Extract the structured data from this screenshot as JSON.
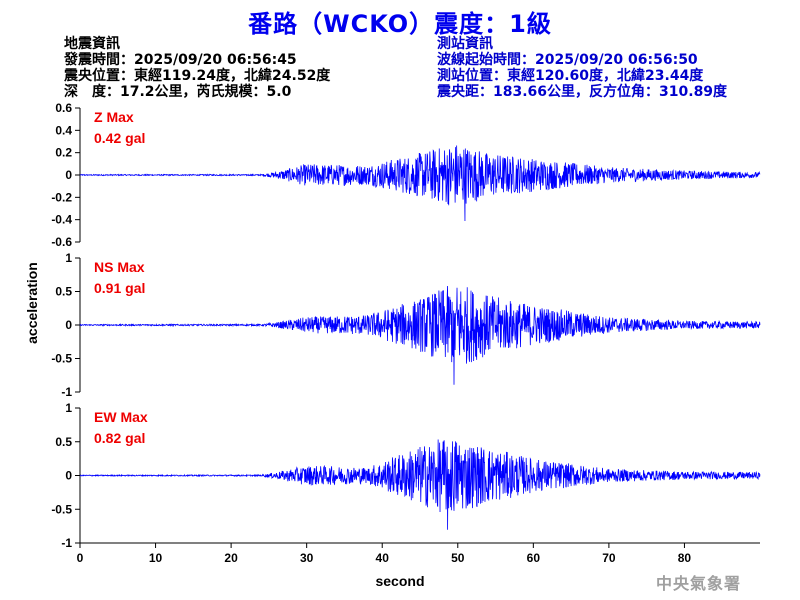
{
  "title": "番路（WCKO）震度：1級",
  "info_left": {
    "heading": "地震資訊",
    "origin_time": "發震時間：2025/09/20 06:56:45",
    "epicenter": "震央位置：東經119.24度，北緯24.52度",
    "depth_magnitude": "深　度：17.2公里，芮氏規模：5.0"
  },
  "info_right": {
    "heading": "測站資訊",
    "wave_start": "波線起始時間：2025/09/20 06:56:50",
    "station_location": "測站位置：東經120.60度，北緯23.44度",
    "distance_azimuth": "震央距：183.66公里，反方位角：310.89度"
  },
  "credit": "中央氣象署",
  "colors": {
    "title": "#0000ee",
    "trace": "#0000ff",
    "max_label": "#ee0000",
    "info_right": "#0000cc",
    "credit": "#a0a0a0"
  },
  "chart_data": {
    "type": "line",
    "xlabel": "second",
    "ylabel": "acceleration",
    "xlim": [
      0,
      90
    ],
    "xticks": [
      0,
      10,
      20,
      30,
      40,
      50,
      60,
      70,
      80
    ],
    "grid": false,
    "panels": [
      {
        "component": "Z",
        "max_label": "Z Max",
        "max_value": "0.42 gal",
        "peak": 0.42,
        "ylim": [
          -0.6,
          0.6
        ],
        "yticks": [
          0.6,
          0.4,
          0.2,
          0,
          -0.2,
          -0.4,
          -0.6
        ],
        "envelope": [
          [
            0,
            0.005
          ],
          [
            24,
            0.006
          ],
          [
            26,
            0.03
          ],
          [
            30,
            0.1
          ],
          [
            38,
            0.09
          ],
          [
            45,
            0.2
          ],
          [
            50,
            0.3
          ],
          [
            54,
            0.2
          ],
          [
            60,
            0.15
          ],
          [
            70,
            0.07
          ],
          [
            80,
            0.04
          ],
          [
            90,
            0.025
          ]
        ]
      },
      {
        "component": "NS",
        "max_label": "NS Max",
        "max_value": "0.91 gal",
        "peak": 0.91,
        "ylim": [
          -1,
          1
        ],
        "yticks": [
          1,
          0.5,
          0,
          -0.5,
          -1
        ],
        "envelope": [
          [
            0,
            0.01
          ],
          [
            24,
            0.012
          ],
          [
            26,
            0.04
          ],
          [
            30,
            0.12
          ],
          [
            38,
            0.15
          ],
          [
            45,
            0.4
          ],
          [
            50,
            0.65
          ],
          [
            54,
            0.45
          ],
          [
            60,
            0.3
          ],
          [
            70,
            0.12
          ],
          [
            80,
            0.06
          ],
          [
            90,
            0.05
          ]
        ]
      },
      {
        "component": "EW",
        "max_label": "EW Max",
        "max_value": "0.82 gal",
        "peak": 0.82,
        "ylim": [
          -1,
          1
        ],
        "yticks": [
          1,
          0.5,
          0,
          -0.5,
          -1
        ],
        "envelope": [
          [
            0,
            0.008
          ],
          [
            24,
            0.01
          ],
          [
            26,
            0.05
          ],
          [
            30,
            0.15
          ],
          [
            38,
            0.12
          ],
          [
            44,
            0.4
          ],
          [
            49,
            0.6
          ],
          [
            53,
            0.45
          ],
          [
            60,
            0.25
          ],
          [
            70,
            0.1
          ],
          [
            80,
            0.06
          ],
          [
            90,
            0.05
          ]
        ]
      }
    ]
  }
}
